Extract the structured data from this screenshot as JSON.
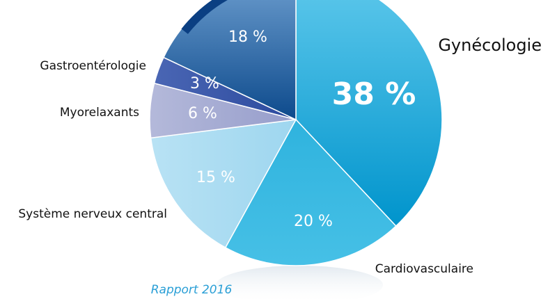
{
  "chart_data": {
    "type": "pie",
    "slices": [
      {
        "label": "Gynécologie",
        "value": 38,
        "text": "38 %",
        "color": "#0099d2"
      },
      {
        "label": "Cardiovasculaire",
        "value": 20,
        "text": "20 %",
        "color": "#35b8e0"
      },
      {
        "label": "Système nerveux central",
        "value": 15,
        "text": "15 %",
        "color": "#a9dcf2"
      },
      {
        "label": "Myorelaxants",
        "value": 6,
        "text": "6 %",
        "color": "#a0a6cf"
      },
      {
        "label": "Gastroentérologie",
        "value": 3,
        "text": "3 %",
        "color": "#3554a8"
      },
      {
        "label": "",
        "value": 18,
        "text": "18 %",
        "color": "#1d5c9e"
      }
    ],
    "footer": "Rapport 2016"
  }
}
